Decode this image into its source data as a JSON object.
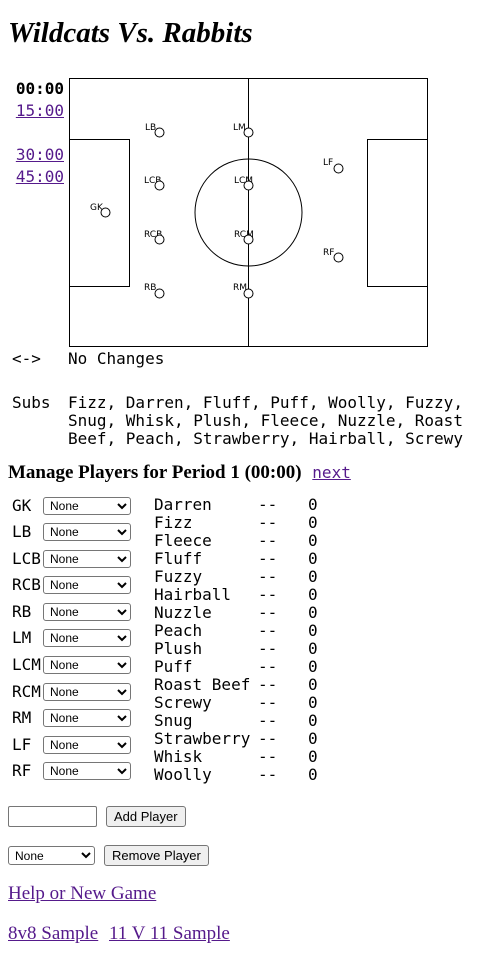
{
  "title": "Wildcats Vs. Rabbits",
  "times": [
    "00:00",
    "15:00",
    "",
    "30:00",
    "45:00"
  ],
  "field_positions": [
    {
      "code": "GK",
      "label": "GK"
    },
    {
      "code": "LB",
      "label": "LB"
    },
    {
      "code": "LCB",
      "label": "LCB"
    },
    {
      "code": "RCB",
      "label": "RCB"
    },
    {
      "code": "RB",
      "label": "RB"
    },
    {
      "code": "LM",
      "label": "LM"
    },
    {
      "code": "LCM",
      "label": "LCM"
    },
    {
      "code": "RCM",
      "label": "RCM"
    },
    {
      "code": "RM",
      "label": "RM"
    },
    {
      "code": "LF",
      "label": "LF"
    },
    {
      "code": "RF",
      "label": "RF"
    }
  ],
  "changes": {
    "arrow": "<->",
    "text": "No Changes"
  },
  "subs": {
    "label": "Subs",
    "text": "Fizz, Darren, Fluff, Puff, Woolly, Fuzzy, Snug, Whisk, Plush, Fleece, Nuzzle, Roast Beef, Peach, Strawberry, Hairball, Screwy"
  },
  "manage": {
    "heading": "Manage Players for Period 1 (00:00)",
    "next_link": "next"
  },
  "positions": [
    "GK",
    "LB",
    "LCB",
    "RCB",
    "RB",
    "LM",
    "LCM",
    "RCM",
    "RM",
    "LF",
    "RF"
  ],
  "select_default": "None",
  "stats": [
    {
      "name": "Darren",
      "dash": "--",
      "value": "0"
    },
    {
      "name": "Fizz",
      "dash": "--",
      "value": "0"
    },
    {
      "name": "Fleece",
      "dash": "--",
      "value": "0"
    },
    {
      "name": "Fluff",
      "dash": "--",
      "value": "0"
    },
    {
      "name": "Fuzzy",
      "dash": "--",
      "value": "0"
    },
    {
      "name": "Hairball",
      "dash": "--",
      "value": "0"
    },
    {
      "name": "Nuzzle",
      "dash": "--",
      "value": "0"
    },
    {
      "name": "Peach",
      "dash": "--",
      "value": "0"
    },
    {
      "name": "Plush",
      "dash": "--",
      "value": "0"
    },
    {
      "name": "Puff",
      "dash": "--",
      "value": "0"
    },
    {
      "name": "Roast Beef",
      "dash": "--",
      "value": "0"
    },
    {
      "name": "Screwy",
      "dash": "--",
      "value": "0"
    },
    {
      "name": "Snug",
      "dash": "--",
      "value": "0"
    },
    {
      "name": "Strawberry",
      "dash": "--",
      "value": "0"
    },
    {
      "name": "Whisk",
      "dash": "--",
      "value": "0"
    },
    {
      "name": "Woolly",
      "dash": "--",
      "value": "0"
    }
  ],
  "add_player": {
    "input_value": "",
    "button": "Add Player"
  },
  "remove_player": {
    "selected": "None",
    "button": "Remove Player"
  },
  "links": {
    "help": "Help or New Game",
    "sample_8v8": "8v8 Sample",
    "sample_11v11": "11 V 11 Sample"
  }
}
